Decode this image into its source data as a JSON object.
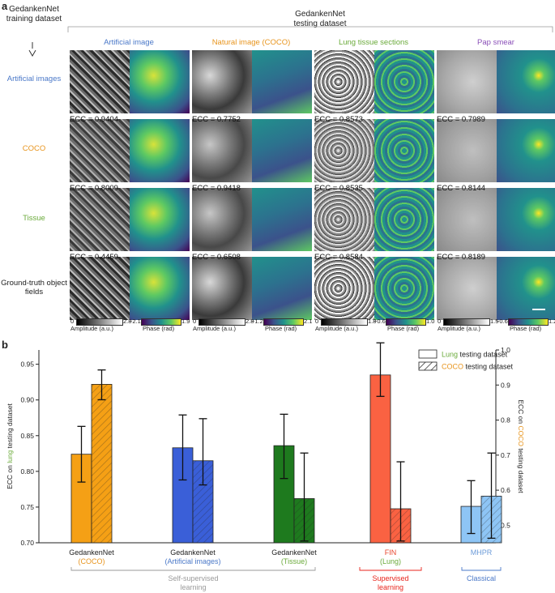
{
  "panel_a": {
    "label": "a",
    "training_header": [
      "GedankenNet",
      "training dataset"
    ],
    "testing_header": [
      "GedankenNet",
      "testing dataset"
    ],
    "columns": [
      {
        "label": "Artificial image",
        "color": "#4a78c8"
      },
      {
        "label": "Natural image (COCO)",
        "color": "#e8951e"
      },
      {
        "label": "Lung tissue sections",
        "color": "#6aaa3a"
      },
      {
        "label": "Pap smear",
        "color": "#8a4fb8"
      }
    ],
    "rows": [
      {
        "label": [
          "Artificial images"
        ],
        "color": "#4a78c8",
        "ecc": [
          "ECC = 0.9404",
          "ECC = 0.7752",
          "ECC = 0.8573",
          "ECC = 0.7989"
        ]
      },
      {
        "label": [
          "COCO"
        ],
        "color": "#e8951e",
        "ecc": [
          "ECC = 0.8009",
          "ECC = 0.9418",
          "ECC = 0.8535",
          "ECC = 0.8144"
        ]
      },
      {
        "label": [
          "Tissue"
        ],
        "color": "#6aaa3a",
        "ecc": [
          "ECC = 0.4459",
          "ECC = 0.6508",
          "ECC = 0.8584",
          "ECC = 0.8189"
        ]
      },
      {
        "label": [
          "Ground-truth object",
          "fields"
        ],
        "color": "#222222",
        "ecc": []
      }
    ],
    "colorbars": [
      {
        "amp_min": "0",
        "amp_max": "2.8",
        "amp_label": "Amplitude (a.u.)",
        "ph_min": "−2.1",
        "ph_max": "1.9",
        "ph_label": "Phase (rad)"
      },
      {
        "amp_min": "0",
        "amp_max": "2.8",
        "amp_label": "Amplitude (a.u.)",
        "ph_min": "−1.2",
        "ph_max": "2.1",
        "ph_label": "Phase (rad)"
      },
      {
        "amp_min": "0",
        "amp_max": "1.8",
        "amp_label": "Amplitude (a.u.)",
        "ph_min": "−0.6",
        "ph_max": "1.0",
        "ph_label": "Phase (rad)"
      },
      {
        "amp_min": "0",
        "amp_max": "1.5",
        "amp_label": "Amplitude (a.u.)",
        "ph_min": "−0.6",
        "ph_max": "1.2",
        "ph_label": "Phase (rad)"
      }
    ]
  },
  "chart_data": {
    "type": "bar",
    "panel_label": "b",
    "title": "",
    "ylabel_left": [
      "ECC on ",
      "lung",
      " testing dataset"
    ],
    "ylabel_right": [
      "ECC on ",
      "COCO",
      " testing dataset"
    ],
    "ylim_left": [
      0.7,
      0.97
    ],
    "ylim_right": [
      0.45,
      1.0
    ],
    "yticks_left": [
      "0.70",
      "0.75",
      "0.80",
      "0.85",
      "0.90",
      "0.95"
    ],
    "yticks_right": [
      "0.5",
      "0.6",
      "0.7",
      "0.8",
      "0.9",
      "1.0"
    ],
    "legend": [
      {
        "prefix": "",
        "word": "Lung",
        "suffix": " testing dataset",
        "word_color": "#6aaa3a",
        "hatched": false
      },
      {
        "prefix": "",
        "word": "COCO",
        "suffix": " testing dataset",
        "word_color": "#e8951e",
        "hatched": true
      }
    ],
    "categories": [
      {
        "name": "GedankenNet",
        "sub": "(COCO)",
        "sub_color": "#e8951e",
        "color": "#f5a015"
      },
      {
        "name": "GedankenNet",
        "sub": "(Artificial images)",
        "sub_color": "#4a78c8",
        "color": "#3a5fd8"
      },
      {
        "name": "GedankenNet",
        "sub": "(Tissue)",
        "sub_color": "#6aaa3a",
        "color": "#1e7a1e"
      },
      {
        "name": "",
        "sub": "FIN",
        "sub2": "(Lung)",
        "sub_color": "#e8452c",
        "color": "#fa6242"
      },
      {
        "name": "",
        "sub": "MHPR",
        "sub_color": "#6a9ad8",
        "color": "#8ec5f5"
      }
    ],
    "series": [
      {
        "name": "Lung testing dataset",
        "axis": "left",
        "values": [
          0.824,
          0.833,
          0.836,
          0.935,
          0.751
        ],
        "err_low": [
          0.785,
          0.788,
          0.79,
          0.905,
          0.713
        ],
        "err_high": [
          0.863,
          0.879,
          0.88,
          0.98,
          0.787
        ]
      },
      {
        "name": "COCO testing dataset",
        "axis": "right",
        "values": [
          0.902,
          0.684,
          0.576,
          0.547,
          0.583
        ],
        "err_low": [
          0.858,
          0.615,
          0.455,
          0.455,
          0.463
        ],
        "err_high": [
          0.943,
          0.804,
          0.706,
          0.681,
          0.706
        ]
      }
    ],
    "groups": [
      {
        "label": [
          "Self-supervised",
          "learning"
        ],
        "color": "#9a9a9a"
      },
      {
        "label": [
          "Supervised",
          "learning"
        ],
        "color": "#e8251c"
      },
      {
        "label": [
          "Classical"
        ],
        "color": "#4a78c8"
      }
    ]
  }
}
